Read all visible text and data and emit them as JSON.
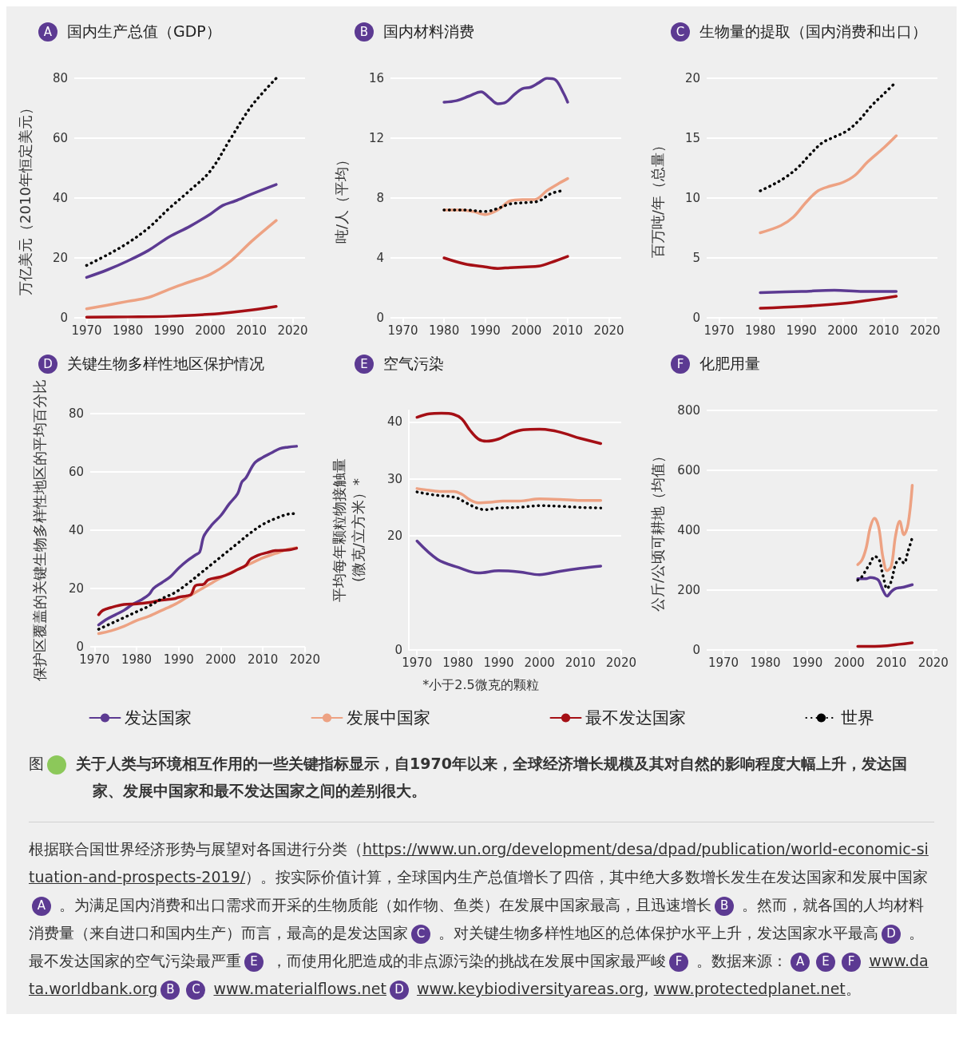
{
  "chart_data": [
    {
      "type": "line",
      "title": "国内生产总值（GDP）",
      "ylabel": "万亿美元（2010年恒定美元）",
      "annotations": [
        "A"
      ],
      "xlim": [
        1967,
        2023
      ],
      "xticks": [
        1970,
        1980,
        1990,
        2000,
        2010,
        2020
      ],
      "ylim": [
        0,
        80
      ],
      "yticks": [
        0,
        20,
        40,
        60,
        80
      ],
      "grid": "y",
      "legend": "bottom",
      "marker": "none",
      "series": [
        {
          "name": "发达国家",
          "color": "#5c3a92",
          "line_style": "solid",
          "x": [
            1970,
            1975,
            1980,
            1985,
            1990,
            1995,
            2000,
            2003,
            2006,
            2010,
            2016
          ],
          "values": [
            13.5,
            16,
            19,
            22.5,
            27,
            30.5,
            34.6,
            37.5,
            39,
            41.3,
            44.5
          ]
        },
        {
          "name": "发展中国家",
          "color": "#eda283",
          "line_style": "solid",
          "x": [
            1970,
            1975,
            1980,
            1985,
            1990,
            1995,
            2000,
            2005,
            2010,
            2016
          ],
          "values": [
            3,
            4.2,
            5.5,
            6.8,
            9.5,
            12,
            14.5,
            19,
            25.5,
            32.5
          ]
        },
        {
          "name": "最不发达国家",
          "color": "#a50f15",
          "line_style": "solid",
          "x": [
            1970,
            1980,
            1990,
            2000,
            2005,
            2010,
            2016
          ],
          "values": [
            0.2,
            0.3,
            0.5,
            1.2,
            1.8,
            2.6,
            3.8
          ]
        },
        {
          "name": "世界",
          "color": "#000000",
          "line_style": "dotted",
          "x": [
            1970,
            1975,
            1980,
            1985,
            1990,
            1995,
            2000,
            2005,
            2010,
            2016
          ],
          "values": [
            17.5,
            21,
            25,
            30,
            36.5,
            42.5,
            49,
            60,
            70.7,
            80
          ]
        }
      ]
    },
    {
      "type": "line",
      "title": "国内材料消费",
      "ylabel": "吨/人（平均）",
      "annotations": [
        "B"
      ],
      "xlim": [
        1967,
        2023
      ],
      "xticks": [
        1970,
        1980,
        1990,
        2000,
        2010,
        2020
      ],
      "ylim": [
        0,
        16
      ],
      "yticks": [
        0,
        4,
        8,
        12,
        16
      ],
      "grid": "y",
      "marker": "none",
      "series": [
        {
          "name": "发达国家",
          "color": "#5c3a92",
          "line_style": "solid",
          "x": [
            1980,
            1983,
            1986,
            1989,
            1991,
            1993,
            1995,
            1997,
            1999,
            2001,
            2003,
            2005,
            2007,
            2009,
            2010
          ],
          "values": [
            14.4,
            14.5,
            14.8,
            15.1,
            14.7,
            14.3,
            14.4,
            14.9,
            15.3,
            15.4,
            15.7,
            16,
            15.9,
            15,
            14.4
          ]
        },
        {
          "name": "发展中国家",
          "color": "#eda283",
          "line_style": "solid",
          "x": [
            1980,
            1984,
            1987,
            1990,
            1993,
            1996,
            1999,
            2002,
            2005,
            2008,
            2010
          ],
          "values": [
            7.2,
            7.2,
            7.1,
            6.9,
            7.2,
            7.8,
            7.9,
            7.9,
            8.5,
            9,
            9.3
          ]
        },
        {
          "name": "最不发达国家",
          "color": "#a50f15",
          "line_style": "solid",
          "x": [
            1980,
            1985,
            1990,
            1993,
            1996,
            2000,
            2003,
            2006,
            2010
          ],
          "values": [
            4,
            3.6,
            3.4,
            3.3,
            3.35,
            3.4,
            3.45,
            3.7,
            4.1
          ]
        },
        {
          "name": "世界",
          "color": "#000000",
          "line_style": "dotted",
          "x": [
            1980,
            1985,
            1990,
            1993,
            1996,
            2000,
            2003,
            2006,
            2009
          ],
          "values": [
            7.2,
            7.2,
            7.1,
            7.3,
            7.6,
            7.7,
            7.8,
            8.3,
            8.5
          ]
        }
      ]
    },
    {
      "type": "line",
      "title": "生物量的提取（国内消费和出口）",
      "ylabel": "百万吨/年（总量）",
      "annotations": [
        "C"
      ],
      "xlim": [
        1967,
        2023
      ],
      "xticks": [
        1970,
        1980,
        1990,
        2000,
        2010,
        2020
      ],
      "ylim": [
        0,
        20
      ],
      "yticks": [
        0,
        5,
        10,
        15,
        20
      ],
      "grid": "y",
      "marker": "none",
      "series": [
        {
          "name": "发达国家",
          "color": "#5c3a92",
          "line_style": "solid",
          "x": [
            1980,
            1990,
            1998,
            2005,
            2013
          ],
          "values": [
            2.1,
            2.2,
            2.3,
            2.2,
            2.2
          ]
        },
        {
          "name": "发展中国家",
          "color": "#eda283",
          "line_style": "solid",
          "x": [
            1980,
            1985,
            1988,
            1991,
            1994,
            1997,
            2000,
            2003,
            2006,
            2010,
            2013
          ],
          "values": [
            7.1,
            7.7,
            8.4,
            9.6,
            10.6,
            11,
            11.3,
            11.9,
            13,
            14.2,
            15.2
          ]
        },
        {
          "name": "最不发达国家",
          "color": "#a50f15",
          "line_style": "solid",
          "x": [
            1980,
            1990,
            2000,
            2007,
            2013
          ],
          "values": [
            0.8,
            0.95,
            1.2,
            1.5,
            1.8
          ]
        },
        {
          "name": "世界",
          "color": "#000000",
          "line_style": "dotted",
          "x": [
            1980,
            1983,
            1986,
            1989,
            1992,
            1995,
            1998,
            2001,
            2004,
            2007,
            2010,
            2013
          ],
          "values": [
            10.6,
            11.1,
            11.7,
            12.5,
            13.6,
            14.6,
            15.1,
            15.6,
            16.5,
            17.7,
            18.7,
            19.7
          ]
        }
      ]
    },
    {
      "type": "line",
      "title": "关键生物多样性地区保护情况",
      "ylabel": "保护区覆盖的关键生物多样性地区的平均百分比",
      "annotations": [
        "D"
      ],
      "xlim": [
        1969,
        2020
      ],
      "xticks": [
        1970,
        1980,
        1990,
        2000,
        2010,
        2020
      ],
      "ylim": [
        0,
        80
      ],
      "yticks": [
        0,
        20,
        40,
        60,
        80
      ],
      "grid": "y",
      "marker": "none",
      "series": [
        {
          "name": "发达国家",
          "color": "#5c3a92",
          "line_style": "solid",
          "x": [
            1971,
            1973,
            1975,
            1977,
            1979,
            1981,
            1983,
            1984,
            1986,
            1988,
            1990,
            1992,
            1994,
            1995,
            1996,
            1998,
            2000,
            2002,
            2004,
            2005,
            2006,
            2008,
            2010,
            2012,
            2014,
            2016,
            2018
          ],
          "values": [
            7.5,
            9.5,
            11,
            12.5,
            14.5,
            16,
            18,
            20,
            22,
            24,
            27,
            29.5,
            31.5,
            32.5,
            38,
            42,
            45,
            49,
            52.5,
            56.5,
            58,
            63,
            65,
            66.5,
            68,
            68.5,
            68.8
          ]
        },
        {
          "name": "发展中国家",
          "color": "#eda283",
          "line_style": "solid",
          "x": [
            1971,
            1974,
            1977,
            1980,
            1983,
            1986,
            1989,
            1992,
            1995,
            1998,
            2001,
            2004,
            2007,
            2010,
            2013,
            2016,
            2018
          ],
          "values": [
            4.5,
            5.5,
            7,
            9,
            10.5,
            12.5,
            14.5,
            17,
            19.5,
            22,
            24.5,
            26.5,
            28.5,
            30.5,
            32,
            33.5,
            34
          ]
        },
        {
          "name": "最不发达国家",
          "color": "#a50f15",
          "line_style": "solid",
          "x": [
            1971,
            1972,
            1974,
            1977,
            1980,
            1983,
            1986,
            1989,
            1990,
            1992,
            1993,
            1994,
            1996,
            1997,
            2000,
            2002,
            2004,
            2006,
            2007,
            2009,
            2011,
            2013,
            2016,
            2018
          ],
          "values": [
            11,
            12.5,
            13.5,
            14.5,
            14.7,
            15.2,
            16,
            16.5,
            17,
            17.5,
            18,
            21,
            21.5,
            23,
            24,
            25,
            26.5,
            28,
            30,
            31.5,
            32.3,
            33,
            33.2,
            33.8
          ]
        },
        {
          "name": "世界",
          "color": "#000000",
          "line_style": "dotted",
          "x": [
            1971,
            1974,
            1977,
            1980,
            1983,
            1986,
            1989,
            1992,
            1995,
            1998,
            2001,
            2004,
            2007,
            2010,
            2013,
            2016,
            2018
          ],
          "values": [
            6,
            8,
            10,
            12,
            14,
            16.5,
            18.5,
            21.5,
            25,
            28.5,
            32,
            35.5,
            39,
            42,
            44,
            45.5,
            45.7
          ]
        }
      ]
    },
    {
      "type": "line",
      "title": "空气污染",
      "ylabel": "平均每年颗粒物接触量\n(微克/立方米）*",
      "annotations": [
        "E",
        "*小于2.5微克的颗粒"
      ],
      "xlim": [
        1968,
        2020
      ],
      "xticks": [
        1970,
        1980,
        1990,
        2000,
        2010,
        2020
      ],
      "ylim": [
        0,
        42
      ],
      "yticks": [
        0,
        20,
        30,
        40
      ],
      "grid": "y",
      "marker": "none",
      "series": [
        {
          "name": "发达国家",
          "color": "#5c3a92",
          "line_style": "solid",
          "x": [
            1970,
            1975,
            1980,
            1985,
            1990,
            1995,
            2000,
            2005,
            2010,
            2015
          ],
          "values": [
            19.1,
            15.9,
            14.5,
            13.5,
            13.9,
            13.7,
            13.2,
            13.8,
            14.3,
            14.7
          ]
        },
        {
          "name": "发展中国家",
          "color": "#eda283",
          "line_style": "solid",
          "x": [
            1970,
            1973,
            1976,
            1979,
            1981,
            1983,
            1985,
            1988,
            1991,
            1995,
            2000,
            2005,
            2010,
            2015
          ],
          "values": [
            28.3,
            28,
            27.8,
            27.8,
            27.3,
            26.3,
            25.8,
            25.9,
            26.1,
            26.1,
            26.5,
            26.4,
            26.2,
            26.2
          ]
        },
        {
          "name": "最不发达国家",
          "color": "#a50f15",
          "line_style": "solid",
          "x": [
            1970,
            1973,
            1976,
            1979,
            1981,
            1983,
            1985,
            1987,
            1990,
            1993,
            1996,
            2000,
            2003,
            2006,
            2010,
            2015
          ],
          "values": [
            40.8,
            41.4,
            41.5,
            41.3,
            40.5,
            38.5,
            37,
            36.6,
            37,
            38,
            38.6,
            38.7,
            38.5,
            38,
            37.1,
            36.2
          ]
        },
        {
          "name": "世界",
          "color": "#000000",
          "line_style": "dotted",
          "x": [
            1970,
            1974,
            1978,
            1980,
            1982,
            1985,
            1987,
            1990,
            1995,
            2000,
            2005,
            2010,
            2015
          ],
          "values": [
            27.7,
            27.2,
            26.9,
            26.6,
            25.8,
            24.8,
            24.6,
            24.9,
            25,
            25.3,
            25.2,
            25,
            24.9
          ]
        }
      ]
    },
    {
      "type": "line",
      "title": "化肥用量",
      "ylabel": "公斤/公顷可耕地（均值）",
      "annotations": [
        "F"
      ],
      "xlim": [
        1966,
        2021
      ],
      "xticks": [
        1970,
        1980,
        1990,
        2000,
        2010,
        2020
      ],
      "ylim": [
        0,
        800
      ],
      "yticks": [
        0,
        200,
        400,
        600,
        800
      ],
      "grid": "y",
      "marker": "none",
      "series": [
        {
          "name": "发达国家",
          "color": "#5c3a92",
          "line_style": "solid",
          "x": [
            2002,
            2003,
            2004,
            2005,
            2006,
            2007,
            2008,
            2009,
            2010,
            2011,
            2012,
            2013,
            2015
          ],
          "values": [
            238,
            238,
            238,
            242,
            240,
            232,
            200,
            180,
            195,
            205,
            208,
            210,
            218
          ]
        },
        {
          "name": "发展中国家",
          "color": "#eda283",
          "line_style": "solid",
          "x": [
            2002,
            2003,
            2004,
            2005,
            2006,
            2007,
            2008,
            2009,
            2010,
            2011,
            2012,
            2013,
            2014,
            2015
          ],
          "values": [
            285,
            300,
            340,
            410,
            440,
            410,
            310,
            265,
            280,
            380,
            430,
            385,
            420,
            550
          ]
        },
        {
          "name": "最不发达国家",
          "color": "#a50f15",
          "line_style": "solid",
          "x": [
            2002,
            2006,
            2009,
            2012,
            2015
          ],
          "values": [
            12,
            12,
            14,
            19,
            24
          ]
        },
        {
          "name": "世界",
          "color": "#000000",
          "line_style": "dotted",
          "x": [
            2002,
            2003,
            2004,
            2005,
            2006,
            2007,
            2008,
            2009,
            2010,
            2011,
            2012,
            2013,
            2014,
            2015
          ],
          "values": [
            233,
            245,
            268,
            290,
            312,
            305,
            250,
            205,
            230,
            285,
            305,
            290,
            330,
            375
          ]
        }
      ]
    },
    {
      "type": "other",
      "annotations": [
        "图 4 关于人类与环境相互作用的一些关键指标显示，自1970年以来，全球经济增长规模及其对自然的影响程度大幅上升，发达国家、发展中国家和最不发达国家之间的差别很大。",
        "根据联合国世界经济形势与展望对各国进行分类（https://www.un.org/development/desa/dpad/publication/world-economic-situation-and-prospects-2019/）。按实际价值计算，全球国内生产总值增长了四倍，其中绝大多数增长发生在发达国家和发展中国家 A 。为满足国内消费和出口需求而开采的生物质能（如作物、鱼类）在发展中国家最高，且迅速增长 B 。然而，就各国的人均材料消费量（来自进口和国内生产）而言，最高的是发达国家 C 。对关键生物多样性地区的总体保护水平上升，发达国家水平最高 D 。最不发达国家的空气污染最严重 E ，而使用化肥造成的非点源污染的挑战在发展中国家最严峻 F 。数据来源： A E F www.data.worldbank.org B C www.materialflows.net D www.keybiodiversityareas.org, www.protectedplanet.net。"
      ]
    }
  ]
}
